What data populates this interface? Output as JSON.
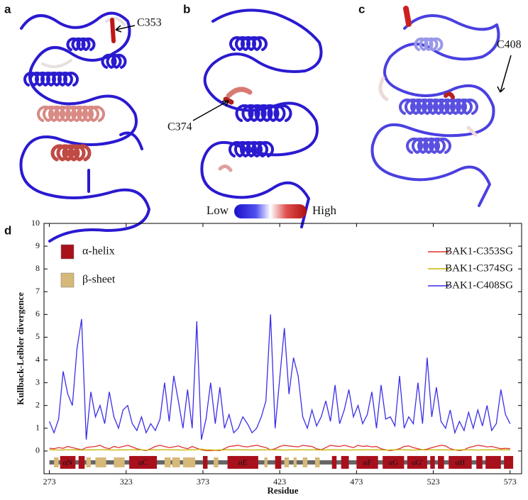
{
  "structures": {
    "panels": [
      {
        "letter": "a",
        "label": "C353"
      },
      {
        "letter": "b",
        "label": "C374"
      },
      {
        "letter": "c",
        "label": "C408"
      }
    ],
    "colorbar": {
      "low": "Low",
      "high": "High"
    }
  },
  "chart_data": {
    "type": "line",
    "panel_label": "d",
    "xlabel": "Residue",
    "ylabel": "Kullback-Leibler divergence",
    "xlim": [
      269.5,
      580.5
    ],
    "ylim": [
      -1,
      10
    ],
    "xticks": [
      273,
      323,
      373,
      423,
      473,
      523,
      573
    ],
    "yticks": [
      0,
      1,
      2,
      3,
      4,
      5,
      6,
      7,
      8,
      9,
      10
    ],
    "x": [
      273,
      276,
      279,
      282,
      285,
      288,
      291,
      294,
      297,
      300,
      303,
      306,
      309,
      312,
      315,
      318,
      321,
      324,
      327,
      330,
      333,
      336,
      339,
      342,
      345,
      348,
      351,
      354,
      357,
      360,
      363,
      366,
      369,
      372,
      375,
      378,
      381,
      384,
      387,
      390,
      393,
      396,
      399,
      402,
      405,
      408,
      411,
      414,
      417,
      420,
      423,
      426,
      429,
      432,
      435,
      438,
      441,
      444,
      447,
      450,
      453,
      456,
      459,
      462,
      465,
      468,
      471,
      474,
      477,
      480,
      483,
      486,
      489,
      492,
      495,
      498,
      501,
      504,
      507,
      510,
      513,
      516,
      519,
      522,
      525,
      528,
      531,
      534,
      537,
      540,
      543,
      546,
      549,
      552,
      555,
      558,
      561,
      564,
      567,
      570,
      573
    ],
    "series": [
      {
        "name": "BAK1-C353SG",
        "color": "#e0302c",
        "values": [
          0.12,
          0.1,
          0.15,
          0.12,
          0.2,
          0.15,
          0.1,
          0.05,
          0.15,
          0.18,
          0.2,
          0.25,
          0.15,
          0.1,
          0.2,
          0.15,
          0.2,
          0.25,
          0.18,
          0.1,
          0.05,
          0.02,
          0.1,
          0.2,
          0.25,
          0.2,
          0.15,
          0.18,
          0.22,
          0.15,
          0.1,
          0.2,
          0.12,
          0.05,
          0.02,
          0.02,
          0.03,
          0.02,
          0.1,
          0.2,
          0.22,
          0.25,
          0.2,
          0.18,
          0.22,
          0.25,
          0.2,
          0.15,
          0.05,
          0.1,
          0.2,
          0.25,
          0.22,
          0.2,
          0.18,
          0.25,
          0.22,
          0.2,
          0.1,
          0.05,
          0.15,
          0.25,
          0.22,
          0.2,
          0.25,
          0.2,
          0.15,
          0.25,
          0.2,
          0.22,
          0.18,
          0.2,
          0.1,
          0.05,
          0.02,
          0.05,
          0.1,
          0.2,
          0.22,
          0.15,
          0.1,
          0.05,
          0.08,
          0.15,
          0.2,
          0.25,
          0.22,
          0.1,
          0.05,
          0.02,
          0.05,
          0.15,
          0.2,
          0.25,
          0.22,
          0.18,
          0.2,
          0.15,
          0.1,
          0.12,
          0.1
        ]
      },
      {
        "name": "BAK1-C374SG",
        "color": "#c8b400",
        "values": [
          0.05,
          0.05,
          0.04,
          0.05,
          0.06,
          0.05,
          0.05,
          0.04,
          0.05,
          0.05,
          0.05,
          0.06,
          0.05,
          0.05,
          0.04,
          0.05,
          0.05,
          0.05,
          0.06,
          0.05,
          0.05,
          0.04,
          0.05,
          0.05,
          0.05,
          0.06,
          0.05,
          0.05,
          0.05,
          0.04,
          0.05,
          0.05,
          0.06,
          0.08,
          0.05,
          0.05,
          0.04,
          0.05,
          0.05,
          0.05,
          0.05,
          0.06,
          0.05,
          0.05,
          0.04,
          0.05,
          0.05,
          0.05,
          0.06,
          0.05,
          0.05,
          0.04,
          0.05,
          0.05,
          0.05,
          0.06,
          0.05,
          0.05,
          0.05,
          0.04,
          0.05,
          0.05,
          0.06,
          0.05,
          0.05,
          0.04,
          0.05,
          0.05,
          0.05,
          0.06,
          0.05,
          0.05,
          0.05,
          0.04,
          0.05,
          0.05,
          0.06,
          0.05,
          0.05,
          0.04,
          0.05,
          0.05,
          0.05,
          0.06,
          0.05,
          0.05,
          0.05,
          0.04,
          0.05,
          0.05,
          0.06,
          0.05,
          0.05,
          0.04,
          0.05,
          0.05,
          0.05,
          0.06,
          0.05,
          0.05,
          0.05
        ]
      },
      {
        "name": "BAK1-C408SG",
        "color": "#3a2ee8",
        "values": [
          1.3,
          0.8,
          1.4,
          3.5,
          2.5,
          2.0,
          4.5,
          5.8,
          0.5,
          2.6,
          1.5,
          2.0,
          1.2,
          2.6,
          1.5,
          1.0,
          1.8,
          2.0,
          1.2,
          0.9,
          1.5,
          0.8,
          1.2,
          0.9,
          1.4,
          3.0,
          1.3,
          3.3,
          2.2,
          1.0,
          2.7,
          1.0,
          5.7,
          0.5,
          1.4,
          3.0,
          1.2,
          2.8,
          1.0,
          1.6,
          0.8,
          1.0,
          1.5,
          1.2,
          0.8,
          1.0,
          1.5,
          2.2,
          6.0,
          1.0,
          3.2,
          5.4,
          2.5,
          4.1,
          3.3,
          1.5,
          1.0,
          1.8,
          1.1,
          1.5,
          2.2,
          1.3,
          2.9,
          1.2,
          1.8,
          2.7,
          1.5,
          2.0,
          1.2,
          1.6,
          2.6,
          1.0,
          2.9,
          1.4,
          1.5,
          1.1,
          3.3,
          1.0,
          1.5,
          1.2,
          3.0,
          1.2,
          4.1,
          1.5,
          2.8,
          1.3,
          1.0,
          1.8,
          0.8,
          1.3,
          0.9,
          1.7,
          1.0,
          1.8,
          1.1,
          2.0,
          0.9,
          1.2,
          2.7,
          1.6,
          1.2
        ]
      }
    ],
    "structure_legend": [
      {
        "name": "α-helix",
        "color": "#a8101c",
        "segments": [
          {
            "start": 280,
            "end": 290,
            "label": "αN"
          },
          {
            "start": 292,
            "end": 296
          },
          {
            "start": 325,
            "end": 343,
            "label": "αC"
          },
          {
            "start": 373,
            "end": 376
          },
          {
            "start": 389,
            "end": 409,
            "label": "αE"
          },
          {
            "start": 420,
            "end": 424
          },
          {
            "start": 457,
            "end": 460
          },
          {
            "start": 463,
            "end": 468
          },
          {
            "start": 473,
            "end": 487,
            "label": "αF"
          },
          {
            "start": 490,
            "end": 504,
            "label": "αG"
          },
          {
            "start": 506,
            "end": 519,
            "label": "αG'"
          },
          {
            "start": 521,
            "end": 524
          },
          {
            "start": 526,
            "end": 530
          },
          {
            "start": 533,
            "end": 548,
            "label": "αH"
          },
          {
            "start": 551,
            "end": 555
          },
          {
            "start": 557,
            "end": 567
          },
          {
            "start": 569,
            "end": 575
          }
        ]
      },
      {
        "name": "β-sheet",
        "color": "#d6b878",
        "segments": [
          {
            "start": 276,
            "end": 279
          },
          {
            "start": 297,
            "end": 300
          },
          {
            "start": 303,
            "end": 310
          },
          {
            "start": 315,
            "end": 322
          },
          {
            "start": 348,
            "end": 352
          },
          {
            "start": 353,
            "end": 358
          },
          {
            "start": 360,
            "end": 368
          },
          {
            "start": 380,
            "end": 383
          },
          {
            "start": 413,
            "end": 415
          },
          {
            "start": 426,
            "end": 429
          },
          {
            "start": 432,
            "end": 434
          },
          {
            "start": 438,
            "end": 441
          },
          {
            "start": 446,
            "end": 449
          }
        ]
      }
    ]
  }
}
